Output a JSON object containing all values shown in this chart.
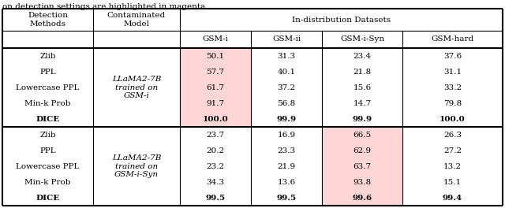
{
  "title_text": "on detection settings are highlighted in magenta.",
  "section1_model": "LLaMA2-7B\ntrained on\nGSM-i",
  "section2_model": "LLaMA2-7B\ntrained on\nGSM-i-Syn",
  "methods": [
    "Zlib",
    "PPL",
    "Lowercase PPL",
    "Min-k Prob",
    "DICE"
  ],
  "section1_data": [
    [
      "50.1",
      "31.3",
      "23.4",
      "37.6"
    ],
    [
      "57.7",
      "40.1",
      "21.8",
      "31.1"
    ],
    [
      "61.7",
      "37.2",
      "15.6",
      "33.2"
    ],
    [
      "91.7",
      "56.8",
      "14.7",
      "79.8"
    ],
    [
      "100.0",
      "99.9",
      "99.9",
      "100.0"
    ]
  ],
  "section2_data": [
    [
      "23.7",
      "16.9",
      "66.5",
      "26.3"
    ],
    [
      "20.2",
      "23.3",
      "62.9",
      "27.2"
    ],
    [
      "23.2",
      "21.9",
      "63.7",
      "13.2"
    ],
    [
      "34.3",
      "13.6",
      "93.8",
      "15.1"
    ],
    [
      "99.5",
      "99.5",
      "99.6",
      "99.4"
    ]
  ],
  "highlight_col_sec1": 0,
  "highlight_col_sec2": 2,
  "highlight_color": "#FFD6D6",
  "bold_row": 4,
  "background_color": "#ffffff",
  "line_color": "#000000",
  "text_color": "#000000",
  "sub_labels": [
    "GSM-i",
    "GSM-ii",
    "GSM-i-Syn",
    "GSM-hard"
  ],
  "fontsize": 7.5
}
